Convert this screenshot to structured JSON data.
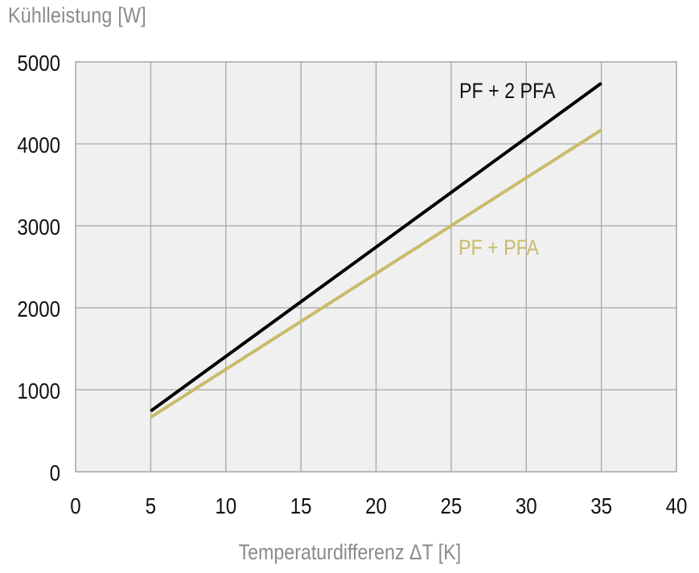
{
  "chart_data": {
    "type": "line",
    "title": "",
    "xlabel": "Temperaturdifferenz ΔT [K]",
    "ylabel": "Kühlleistung [W]",
    "xlim": [
      0,
      40
    ],
    "ylim": [
      0,
      5000
    ],
    "xticks": [
      0,
      5,
      10,
      15,
      20,
      25,
      30,
      35,
      40
    ],
    "yticks": [
      0,
      1000,
      2000,
      3000,
      4000,
      5000
    ],
    "grid": true,
    "legend": "inline labels",
    "series": [
      {
        "name": "PF + 2 PFA",
        "color": "#000000",
        "x": [
          5,
          35
        ],
        "y": [
          740,
          4740
        ]
      },
      {
        "name": "PF + PFA",
        "color": "#c8bc6a",
        "x": [
          5,
          35
        ],
        "y": [
          665,
          4170
        ]
      }
    ]
  },
  "labels": {
    "ylabel": "Kühlleistung [W]",
    "xlabel": "Temperaturdifferenz ΔT [K]",
    "series1": "PF + 2 PFA",
    "series2": "PF + PFA"
  },
  "colors": {
    "plot_bg": "#f0f0f0",
    "grid": "#a6a6a6",
    "axis_text": "#111111",
    "title_text": "#8a8a8a",
    "series1": "#000000",
    "series2": "#c8bc6a"
  }
}
